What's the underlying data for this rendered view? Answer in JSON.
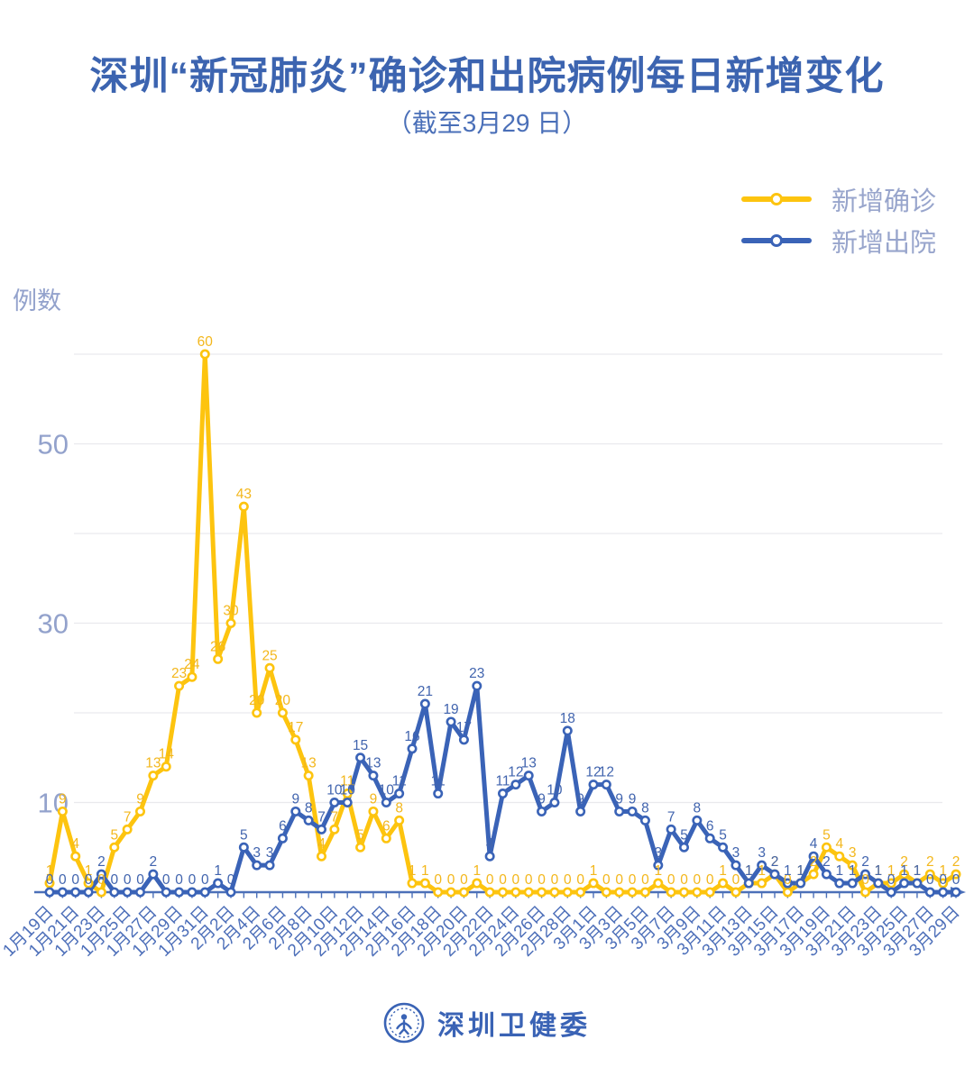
{
  "title": "深圳“新冠肺炎”确诊和出院病例每日新增变化",
  "subtitle": "（截至3月29 日）",
  "y_axis_title": "例数",
  "legend": [
    {
      "label": "新增确诊",
      "color": "#FDC40F"
    },
    {
      "label": "新增出院",
      "color": "#3A63B7"
    }
  ],
  "footer": {
    "brand": "深圳卫健委"
  },
  "colors": {
    "title": "#3C64B0",
    "subtitle": "#4A6FB8",
    "grid": "#E9E9ED",
    "axis": "#4C70B8",
    "x_tick_label": "#4D6FB9",
    "y_tick_label": "#93A2CC",
    "brand": "#3A63B5"
  },
  "chart_data": {
    "type": "line",
    "title": "深圳“新冠肺炎”确诊和出院病例每日新增变化",
    "subtitle": "（截至3月29 日）",
    "ylabel": "例数",
    "ylim": [
      0,
      62
    ],
    "gridlines": [
      10,
      20,
      30,
      40,
      50,
      60
    ],
    "yticks_labeled": [
      10,
      30,
      50
    ],
    "x_tick_label_every": 2,
    "legend_position": "top-right",
    "point_labels": true,
    "categories": [
      "1月19日",
      "1月20日",
      "1月21日",
      "1月22日",
      "1月23日",
      "1月24日",
      "1月25日",
      "1月26日",
      "1月27日",
      "1月28日",
      "1月29日",
      "1月30日",
      "1月31日",
      "2月1日",
      "2月2日",
      "2月3日",
      "2月4日",
      "2月5日",
      "2月6日",
      "2月7日",
      "2月8日",
      "2月9日",
      "2月10日",
      "2月11日",
      "2月12日",
      "2月13日",
      "2月14日",
      "2月15日",
      "2月16日",
      "2月17日",
      "2月18日",
      "2月19日",
      "2月20日",
      "2月21日",
      "2月22日",
      "2月23日",
      "2月24日",
      "2月25日",
      "2月26日",
      "2月27日",
      "2月28日",
      "2月29日",
      "3月1日",
      "3月2日",
      "3月3日",
      "3月4日",
      "3月5日",
      "3月6日",
      "3月7日",
      "3月8日",
      "3月9日",
      "3月10日",
      "3月11日",
      "3月12日",
      "3月13日",
      "3月14日",
      "3月15日",
      "3月16日",
      "3月17日",
      "3月18日",
      "3月19日",
      "3月20日",
      "3月21日",
      "3月22日",
      "3月23日",
      "3月24日",
      "3月25日",
      "3月26日",
      "3月27日",
      "3月28日",
      "3月29日"
    ],
    "series": [
      {
        "name": "新增确诊",
        "color": "#FDC40F",
        "label_color": "#F3B71C",
        "values": [
          1,
          9,
          4,
          1,
          0,
          5,
          7,
          9,
          13,
          14,
          23,
          24,
          60,
          26,
          30,
          43,
          20,
          25,
          20,
          17,
          13,
          4,
          7,
          11,
          5,
          9,
          6,
          8,
          1,
          1,
          0,
          0,
          0,
          1,
          0,
          0,
          0,
          0,
          0,
          0,
          0,
          0,
          1,
          0,
          0,
          0,
          0,
          1,
          0,
          0,
          0,
          0,
          1,
          0,
          1,
          1,
          2,
          0,
          1,
          2,
          5,
          4,
          3,
          0,
          1,
          1,
          2,
          1,
          2,
          1,
          2
        ]
      },
      {
        "name": "新增出院",
        "color": "#3A63B7",
        "label_color": "#4164AE",
        "values": [
          0,
          0,
          0,
          0,
          2,
          0,
          0,
          0,
          2,
          0,
          0,
          0,
          0,
          1,
          0,
          5,
          3,
          3,
          6,
          9,
          8,
          7,
          10,
          10,
          15,
          13,
          10,
          11,
          16,
          21,
          11,
          19,
          17,
          23,
          4,
          11,
          12,
          13,
          9,
          10,
          18,
          9,
          12,
          12,
          9,
          9,
          8,
          3,
          7,
          5,
          8,
          6,
          5,
          3,
          1,
          3,
          2,
          1,
          1,
          4,
          2,
          1,
          1,
          2,
          1,
          0,
          1,
          1,
          0,
          0,
          0
        ]
      }
    ]
  }
}
